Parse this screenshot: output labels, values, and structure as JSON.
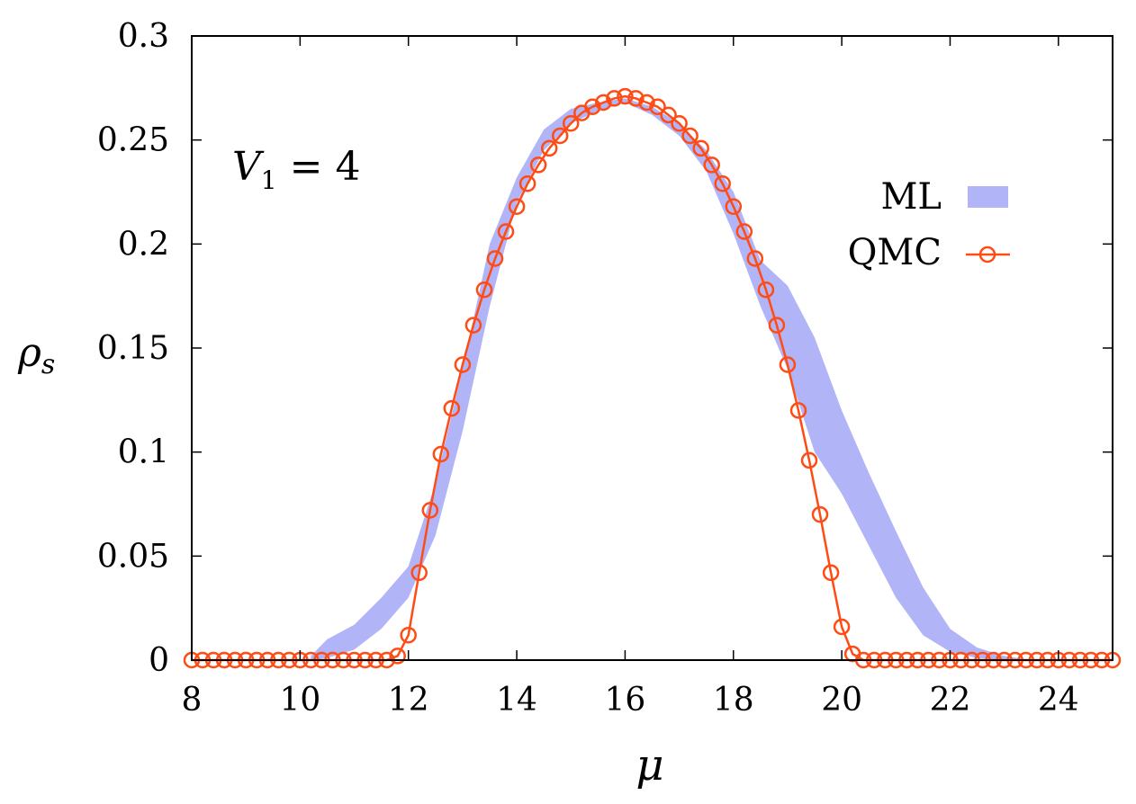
{
  "chart_data": {
    "type": "line",
    "xlabel": "μ",
    "ylabel_main": "ρ",
    "ylabel_sub": "s",
    "xlim": [
      8,
      25
    ],
    "ylim": [
      0,
      0.3
    ],
    "xticks": [
      8,
      10,
      12,
      14,
      16,
      18,
      20,
      22,
      24
    ],
    "xtick_labels": [
      "8",
      "10",
      "12",
      "14",
      "16",
      "18",
      "20",
      "22",
      "24"
    ],
    "yticks": [
      0,
      0.05,
      0.1,
      0.15,
      0.2,
      0.25,
      0.3
    ],
    "ytick_labels": [
      "0",
      "0.05",
      "0.1",
      "0.15",
      "0.2",
      "0.25",
      "0.3"
    ],
    "grid": false,
    "legend_placement": "top-right",
    "annotation": {
      "main": "V",
      "sub": "1",
      "rest": " = 4"
    },
    "series": [
      {
        "name": "ML",
        "kind": "band",
        "color": "#b1b4f7",
        "x": [
          10.2,
          10.5,
          11.0,
          11.5,
          12.0,
          12.5,
          13.0,
          13.5,
          14.0,
          14.5,
          15.0,
          15.5,
          16.0,
          16.5,
          17.0,
          17.5,
          18.0,
          18.5,
          19.0,
          19.5,
          20.0,
          20.5,
          21.0,
          21.5,
          22.0,
          22.5,
          23.0,
          23.5
        ],
        "upper": [
          0.002,
          0.01,
          0.017,
          0.03,
          0.045,
          0.085,
          0.14,
          0.2,
          0.232,
          0.255,
          0.265,
          0.268,
          0.27,
          0.266,
          0.258,
          0.245,
          0.225,
          0.192,
          0.18,
          0.155,
          0.12,
          0.09,
          0.062,
          0.035,
          0.015,
          0.006,
          0.002,
          0.0
        ],
        "lower": [
          0.0,
          0.001,
          0.005,
          0.015,
          0.03,
          0.06,
          0.11,
          0.17,
          0.22,
          0.245,
          0.258,
          0.264,
          0.268,
          0.262,
          0.252,
          0.235,
          0.205,
          0.17,
          0.14,
          0.1,
          0.08,
          0.055,
          0.03,
          0.012,
          0.004,
          0.001,
          0.0,
          0.0
        ]
      },
      {
        "name": "QMC",
        "kind": "line-marker",
        "color": "#ff4b14",
        "x": [
          8.0,
          8.2,
          8.4,
          8.6,
          8.8,
          9.0,
          9.2,
          9.4,
          9.6,
          9.8,
          10.0,
          10.2,
          10.4,
          10.6,
          10.8,
          11.0,
          11.2,
          11.4,
          11.6,
          11.8,
          12.0,
          12.2,
          12.4,
          12.6,
          12.8,
          13.0,
          13.2,
          13.4,
          13.6,
          13.8,
          14.0,
          14.2,
          14.4,
          14.6,
          14.8,
          15.0,
          15.2,
          15.4,
          15.6,
          15.8,
          16.0,
          16.2,
          16.4,
          16.6,
          16.8,
          17.0,
          17.2,
          17.4,
          17.6,
          17.8,
          18.0,
          18.2,
          18.4,
          18.6,
          18.8,
          19.0,
          19.2,
          19.4,
          19.6,
          19.8,
          20.0,
          20.2,
          20.4,
          20.6,
          20.8,
          21.0,
          21.2,
          21.4,
          21.6,
          21.8,
          22.0,
          22.2,
          22.4,
          22.6,
          22.8,
          23.0,
          23.2,
          23.4,
          23.6,
          23.8,
          24.0,
          24.2,
          24.4,
          24.6,
          24.8,
          25.0
        ],
        "y": [
          0,
          0,
          0,
          0,
          0,
          0,
          0,
          0,
          0,
          0,
          0,
          0,
          0,
          0,
          0,
          0,
          0,
          0,
          0,
          0.002,
          0.012,
          0.042,
          0.072,
          0.099,
          0.121,
          0.142,
          0.161,
          0.178,
          0.193,
          0.206,
          0.218,
          0.229,
          0.238,
          0.246,
          0.252,
          0.258,
          0.263,
          0.266,
          0.268,
          0.27,
          0.271,
          0.27,
          0.268,
          0.266,
          0.262,
          0.258,
          0.252,
          0.246,
          0.238,
          0.229,
          0.218,
          0.206,
          0.193,
          0.178,
          0.161,
          0.142,
          0.12,
          0.096,
          0.07,
          0.042,
          0.016,
          0.003,
          0,
          0,
          0,
          0,
          0,
          0,
          0,
          0,
          0,
          0,
          0,
          0,
          0,
          0,
          0,
          0,
          0,
          0,
          0,
          0,
          0,
          0,
          0,
          0
        ]
      }
    ]
  }
}
